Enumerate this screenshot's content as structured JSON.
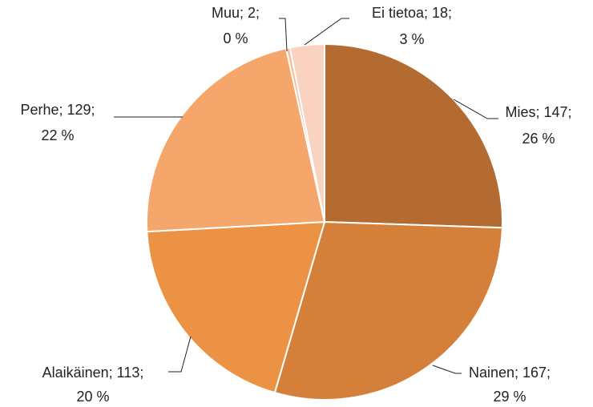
{
  "chart_data": {
    "type": "pie",
    "values": [
      147,
      167,
      113,
      129,
      2,
      18
    ],
    "value_labels": [
      "Mies; 147;",
      "Nainen; 167;",
      "Alaikäinen; 113;",
      "Perhe; 129;",
      "Muu; 2;",
      "Ei tietoa; 18;"
    ],
    "percent_labels": [
      "26 %",
      "29 %",
      "20 %",
      "22 %",
      "0 %",
      "3 %"
    ],
    "colors": [
      "#b46b31",
      "#d4803b",
      "#ec9244",
      "#f4a66b",
      "#f7bd97",
      "#f9d3c0"
    ]
  }
}
